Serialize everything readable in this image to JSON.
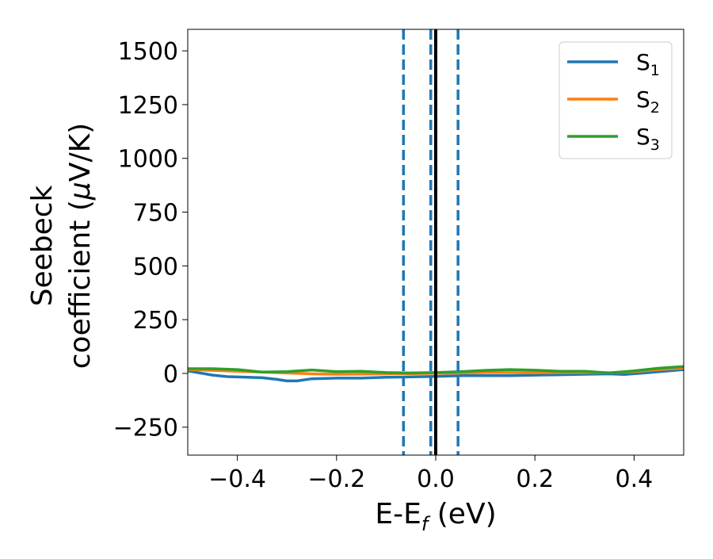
{
  "chart_data": {
    "type": "line",
    "xlabel": "E-E",
    "xlabel_sub": "f",
    "xlabel_unit": " (eV)",
    "ylabel_line1": "Seebeck",
    "ylabel_line2_prefix": "coefficient  (",
    "ylabel_line2_mu": "μ",
    "ylabel_line2_suffix": "V/K)",
    "xlim": [
      -0.5,
      0.5
    ],
    "ylim": [
      -380,
      1600
    ],
    "xticks": [
      -0.4,
      -0.2,
      0.0,
      0.2,
      0.4
    ],
    "xtick_labels": [
      "−0.4",
      "−0.2",
      "0.0",
      "0.2",
      "0.4"
    ],
    "yticks": [
      -250,
      0,
      250,
      500,
      750,
      1000,
      1250,
      1500
    ],
    "ytick_labels": [
      "−250",
      "0",
      "250",
      "500",
      "750",
      "1000",
      "1250",
      "1500"
    ],
    "grid": false,
    "legend_position": "top-right",
    "vertical_lines": [
      {
        "x": -0.065,
        "style": "dashed",
        "color": "#1f77b4"
      },
      {
        "x": -0.01,
        "style": "dashed",
        "color": "#1f77b4"
      },
      {
        "x": 0.0,
        "style": "solid",
        "color": "#000000"
      },
      {
        "x": 0.045,
        "style": "dashed",
        "color": "#1f77b4"
      }
    ],
    "series": [
      {
        "name": "S",
        "subscript": "1",
        "color": "#1f77b4",
        "x": [
          -0.5,
          -0.45,
          -0.42,
          -0.38,
          -0.35,
          -0.32,
          -0.3,
          -0.28,
          -0.25,
          -0.2,
          -0.15,
          -0.1,
          -0.05,
          0.0,
          0.05,
          0.1,
          0.15,
          0.2,
          0.25,
          0.3,
          0.35,
          0.38,
          0.42,
          0.45,
          0.5
        ],
        "y": [
          12,
          -8,
          -15,
          -18,
          -20,
          -28,
          -35,
          -35,
          -25,
          -22,
          -22,
          -18,
          -16,
          -14,
          -10,
          -10,
          -10,
          -8,
          -6,
          -4,
          -2,
          -5,
          2,
          8,
          18
        ]
      },
      {
        "name": "S",
        "subscript": "2",
        "color": "#ff7f0e",
        "x": [
          -0.5,
          -0.45,
          -0.4,
          -0.35,
          -0.3,
          -0.25,
          -0.2,
          -0.15,
          -0.1,
          -0.05,
          0.0,
          0.05,
          0.1,
          0.15,
          0.2,
          0.25,
          0.3,
          0.35,
          0.4,
          0.45,
          0.5
        ],
        "y": [
          18,
          14,
          10,
          6,
          2,
          -2,
          -4,
          -3,
          -2,
          -1,
          0,
          2,
          4,
          4,
          3,
          4,
          5,
          3,
          8,
          18,
          25
        ]
      },
      {
        "name": "S",
        "subscript": "3",
        "color": "#2ca02c",
        "x": [
          -0.5,
          -0.45,
          -0.4,
          -0.35,
          -0.3,
          -0.25,
          -0.2,
          -0.15,
          -0.1,
          -0.05,
          0.0,
          0.05,
          0.1,
          0.15,
          0.2,
          0.25,
          0.3,
          0.35,
          0.4,
          0.45,
          0.5
        ],
        "y": [
          22,
          22,
          18,
          6,
          8,
          16,
          8,
          10,
          4,
          2,
          4,
          8,
          14,
          18,
          15,
          10,
          10,
          2,
          12,
          24,
          32
        ]
      }
    ]
  }
}
